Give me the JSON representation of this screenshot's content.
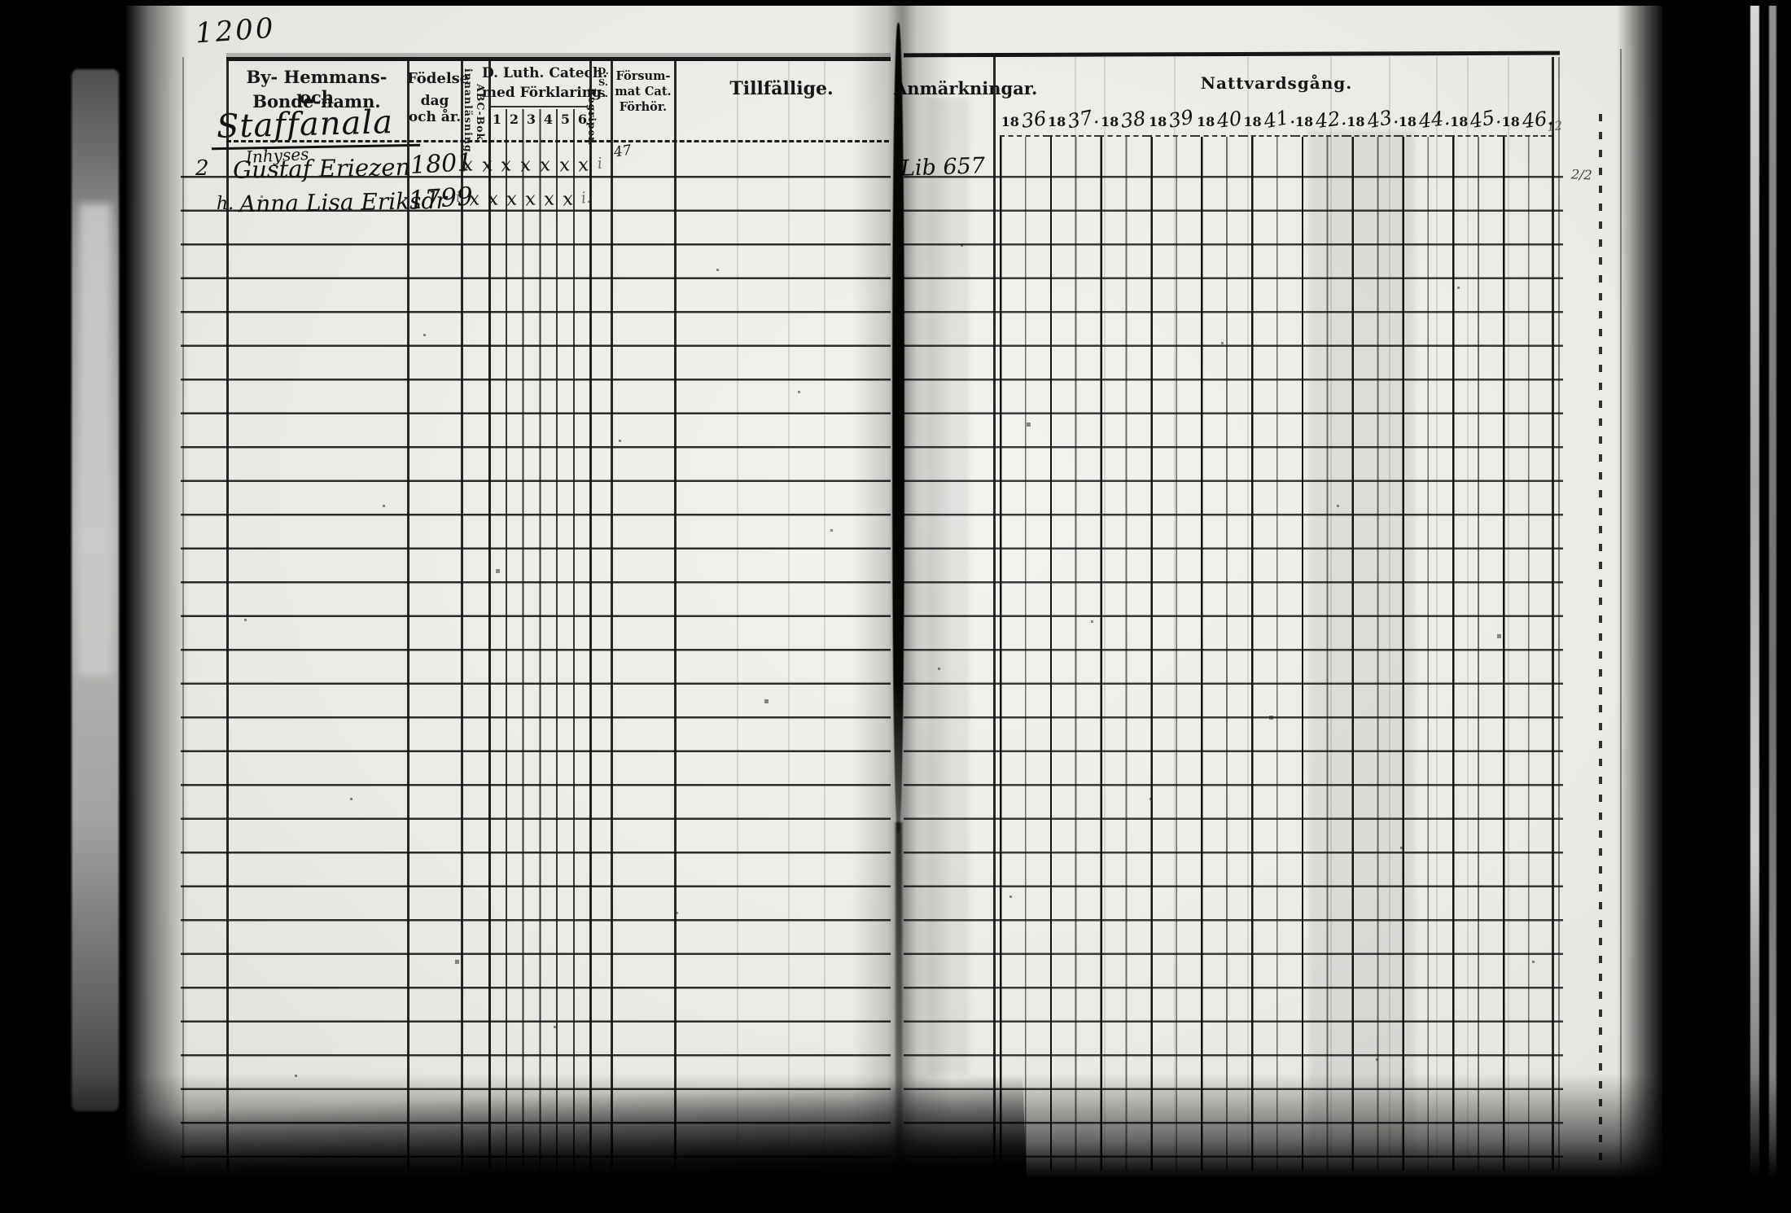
{
  "scan": {
    "page_number": "1200",
    "left_table": {
      "name_col": {
        "line1": "By- Hemmans- och",
        "line2": "Bonde-namn."
      },
      "birth_col": {
        "line1": "Födelse",
        "line2": "dag och år."
      },
      "abc_col": {
        "line1": "ABC-Bok",
        "line2": "innanläsning."
      },
      "catech_col": {
        "line1": "D. Luth. Catech.",
        "line2": "med Förklaring.",
        "grades": [
          "1",
          "2",
          "3",
          "4",
          "5",
          "6"
        ]
      },
      "begriper_col": {
        "stacked": "D. S. S.",
        "rotated": "Begriper."
      },
      "missed_col": {
        "line1": "Försum-",
        "line2": "mat Cat.",
        "line3": "Förhör."
      },
      "occasional_col": {
        "label": "Tillfällige."
      }
    },
    "right_table": {
      "remarks_col": {
        "label": "Anmärkningar."
      },
      "communion_col": {
        "label": "Nattvardsgång."
      },
      "year_prefix": "18",
      "years": [
        "36",
        "37.",
        "38",
        "39",
        "40",
        "41.",
        "42.",
        "43.",
        "44.",
        "45.",
        "46."
      ]
    },
    "handwriting": {
      "section_title": "Staffanala",
      "section_note": "Inhyses",
      "rows": [
        {
          "row_no": "2",
          "name": "Gustaf Eriezen",
          "birth": "1801",
          "marks": [
            "x",
            "x",
            "x",
            "x",
            "x",
            "x",
            "x",
            "i"
          ]
        },
        {
          "row_no": "h.",
          "name": "Anna Lisa Eriksdr",
          "birth": "1799",
          "marks": [
            "i",
            "x",
            "x",
            "x",
            "x",
            "x",
            "x",
            "i."
          ]
        }
      ],
      "missed_note": "47",
      "remark_note": "Lib 657",
      "margin_note": "2/2",
      "margin_note2": "12"
    }
  }
}
